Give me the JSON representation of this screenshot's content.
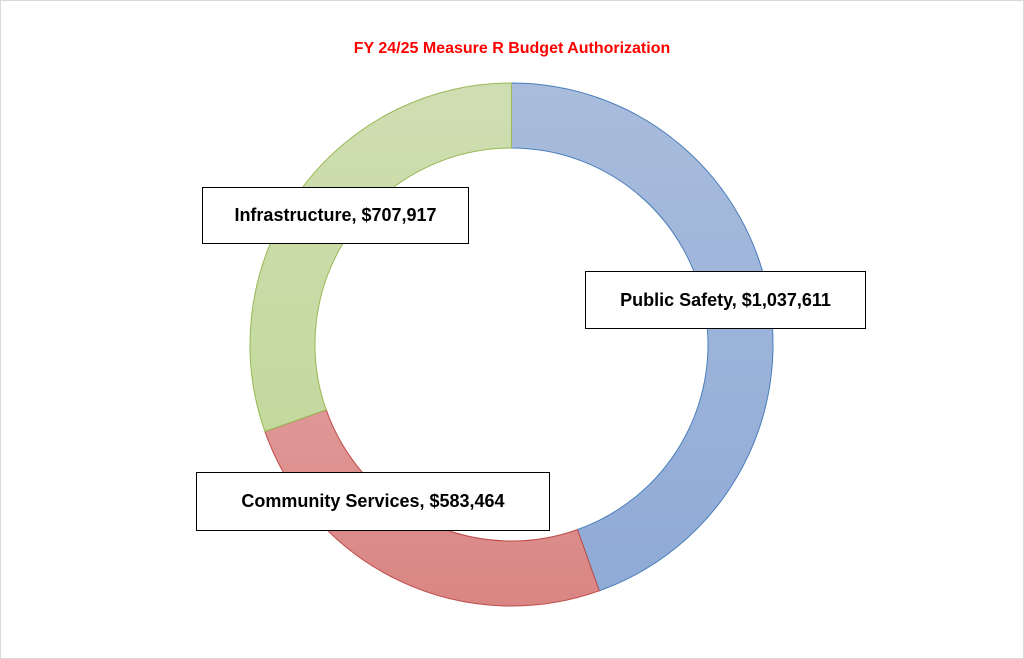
{
  "chart_data": {
    "type": "pie",
    "variant": "donut",
    "title": "FY 24/25 Measure R Budget Authorization",
    "slices": [
      {
        "label": "Public Safety",
        "value": 1037611,
        "display": "Public Safety, $1,037,611",
        "color_top": "#a9bcdc",
        "color_bottom": "#8eaad6",
        "stroke": "#4a7ebb"
      },
      {
        "label": "Community Services",
        "value": 583464,
        "display": "Community Services, $583,464",
        "color_top": "#e8b6b5",
        "color_bottom": "#d98583",
        "stroke": "#be4b48"
      },
      {
        "label": "Infrastructure",
        "value": 707917,
        "display": "Infrastructure, $707,917",
        "color_top": "#cfdeb2",
        "color_bottom": "#bdd693",
        "stroke": "#98b954"
      }
    ],
    "start_angle": "top",
    "direction": "clockwise",
    "legend": "none"
  }
}
